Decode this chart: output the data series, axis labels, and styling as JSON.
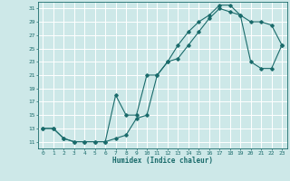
{
  "xlabel": "Humidex (Indice chaleur)",
  "background_color": "#cde8e8",
  "grid_color": "#ffffff",
  "line_color": "#1a6b6b",
  "xlim": [
    -0.5,
    23.5
  ],
  "ylim": [
    10.0,
    32.0
  ],
  "yticks": [
    11,
    13,
    15,
    17,
    19,
    21,
    23,
    25,
    27,
    29,
    31
  ],
  "xticks": [
    0,
    1,
    2,
    3,
    4,
    5,
    6,
    7,
    8,
    9,
    10,
    11,
    12,
    13,
    14,
    15,
    16,
    17,
    18,
    19,
    20,
    21,
    22,
    23
  ],
  "line1_x": [
    0,
    1,
    2,
    3,
    4,
    5,
    6,
    7,
    8,
    9,
    10,
    11,
    12,
    13,
    14,
    15,
    16,
    17,
    18,
    19,
    20,
    21,
    22,
    23
  ],
  "line1_y": [
    13,
    13,
    11.5,
    11,
    11,
    11,
    11,
    11.5,
    12,
    14.5,
    15,
    21,
    23,
    25.5,
    27.5,
    29,
    30,
    31.5,
    31.5,
    30,
    29,
    29,
    28.5,
    25.5
  ],
  "line2_x": [
    0,
    1,
    2,
    3,
    4,
    5,
    6,
    7,
    8,
    9,
    10,
    11,
    12,
    13,
    14,
    15,
    16,
    17,
    18,
    19,
    20,
    21,
    22,
    23
  ],
  "line2_y": [
    13,
    13,
    11.5,
    11,
    11,
    11,
    11,
    18,
    15,
    15,
    21,
    21,
    23,
    23.5,
    25.5,
    27.5,
    29.5,
    31,
    30.5,
    30,
    23,
    22,
    22,
    25.5
  ]
}
